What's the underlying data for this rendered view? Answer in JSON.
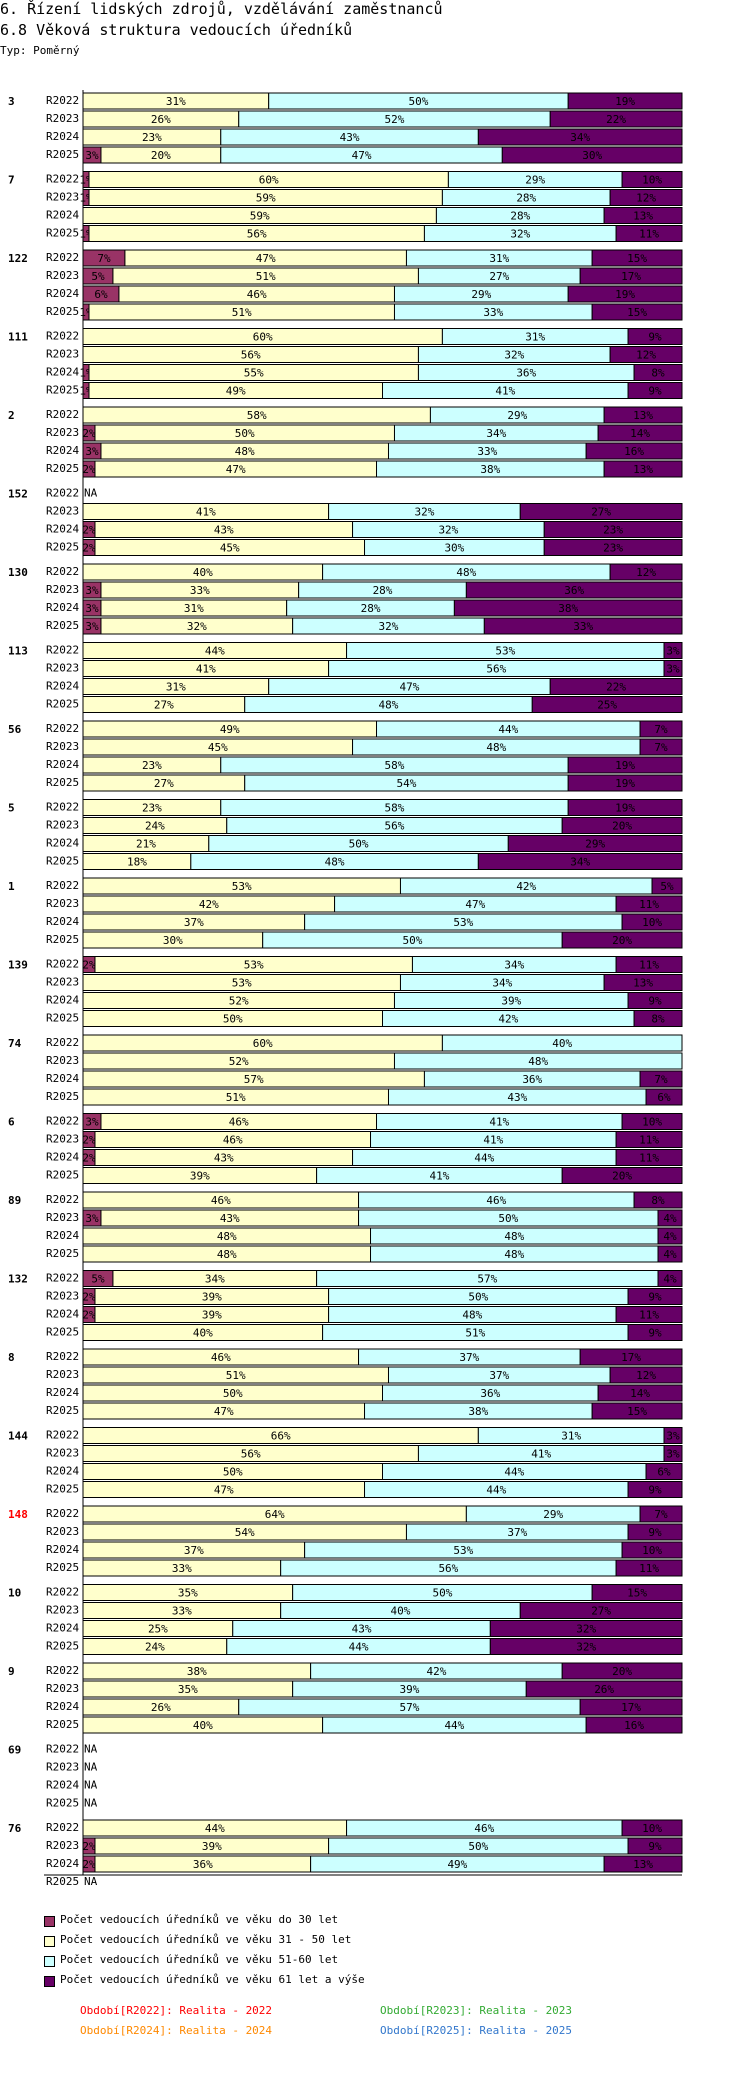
{
  "header": {
    "title": "6. Řízení lidských zdrojů, vzdělávání zaměstnanců",
    "subtitle": "6.8 Věková struktura vedoucích úředníků",
    "type_label": "Typ: Poměrný"
  },
  "colors": {
    "do30": "#993366",
    "31_50": "#ffffcc",
    "51_60": "#ccffff",
    "61plus": "#660066",
    "highlight_group": "#ff0000",
    "period_r2022": "#ff0000",
    "period_r2023": "#33aa33",
    "period_r2024": "#ff8800",
    "period_r2025": "#3377cc"
  },
  "legend": [
    {
      "label": "Počet vedoucích úředníků ve věku do 30 let",
      "color": "#993366"
    },
    {
      "label": "Počet vedoucích úředníků ve věku 31 - 50 let",
      "color": "#ffffcc"
    },
    {
      "label": "Počet vedoucích úředníků ve věku 51-60 let",
      "color": "#ccffff"
    },
    {
      "label": "Počet vedoucích úředníků ve věku 61 let a výše",
      "color": "#660066"
    }
  ],
  "periods": [
    {
      "label": "Období[R2022]: Realita - 2022",
      "color": "#ff0000"
    },
    {
      "label": "Období[R2023]: Realita - 2023",
      "color": "#33aa33"
    },
    {
      "label": "Období[R2024]: Realita - 2024",
      "color": "#ff8800"
    },
    {
      "label": "Období[R2025]: Realita - 2025",
      "color": "#3377cc"
    }
  ],
  "chart_data": {
    "type": "bar",
    "orientation": "horizontal",
    "stacked": "percent",
    "na_label": "NA",
    "series": [
      "Počet vedoucích úředníků ve věku do 30 let",
      "Počet vedoucích úředníků ve věku 31 - 50 let",
      "Počet vedoucích úředníků ve věku 51-60 let",
      "Počet vedoucích úředníků ve věku 61 let a výše"
    ],
    "groups": [
      {
        "id": "3",
        "highlight": false,
        "rows": [
          {
            "period": "R2022",
            "values": [
              0,
              31,
              50,
              19
            ]
          },
          {
            "period": "R2023",
            "values": [
              0,
              26,
              52,
              22
            ]
          },
          {
            "period": "R2024",
            "values": [
              0,
              23,
              43,
              34
            ]
          },
          {
            "period": "R2025",
            "values": [
              3,
              20,
              47,
              30
            ]
          }
        ]
      },
      {
        "id": "7",
        "highlight": false,
        "rows": [
          {
            "period": "R2022",
            "values": [
              1,
              60,
              29,
              10
            ]
          },
          {
            "period": "R2023",
            "values": [
              1,
              59,
              28,
              12
            ]
          },
          {
            "period": "R2024",
            "values": [
              0,
              59,
              28,
              13
            ]
          },
          {
            "period": "R2025",
            "values": [
              1,
              56,
              32,
              11
            ]
          }
        ]
      },
      {
        "id": "122",
        "highlight": false,
        "rows": [
          {
            "period": "R2022",
            "values": [
              7,
              47,
              31,
              15
            ]
          },
          {
            "period": "R2023",
            "values": [
              5,
              51,
              27,
              17
            ]
          },
          {
            "period": "R2024",
            "values": [
              6,
              46,
              29,
              19
            ]
          },
          {
            "period": "R2025",
            "values": [
              1,
              51,
              33,
              15
            ]
          }
        ]
      },
      {
        "id": "111",
        "highlight": false,
        "rows": [
          {
            "period": "R2022",
            "values": [
              0,
              60,
              31,
              9
            ]
          },
          {
            "period": "R2023",
            "values": [
              0,
              56,
              32,
              12
            ]
          },
          {
            "period": "R2024",
            "values": [
              1,
              55,
              36,
              8
            ]
          },
          {
            "period": "R2025",
            "values": [
              1,
              49,
              41,
              9
            ]
          }
        ]
      },
      {
        "id": "2",
        "highlight": false,
        "rows": [
          {
            "period": "R2022",
            "values": [
              0,
              58,
              29,
              13
            ]
          },
          {
            "period": "R2023",
            "values": [
              2,
              50,
              34,
              14
            ]
          },
          {
            "period": "R2024",
            "values": [
              3,
              48,
              33,
              16
            ]
          },
          {
            "period": "R2025",
            "values": [
              2,
              47,
              38,
              13
            ]
          }
        ]
      },
      {
        "id": "152",
        "highlight": false,
        "rows": [
          {
            "period": "R2022",
            "values": null
          },
          {
            "period": "R2023",
            "values": [
              0,
              41,
              32,
              27
            ]
          },
          {
            "period": "R2024",
            "values": [
              2,
              43,
              32,
              23
            ]
          },
          {
            "period": "R2025",
            "values": [
              2,
              45,
              30,
              23
            ]
          }
        ]
      },
      {
        "id": "130",
        "highlight": false,
        "rows": [
          {
            "period": "R2022",
            "values": [
              0,
              40,
              48,
              12
            ]
          },
          {
            "period": "R2023",
            "values": [
              3,
              33,
              28,
              36
            ]
          },
          {
            "period": "R2024",
            "values": [
              3,
              31,
              28,
              38
            ]
          },
          {
            "period": "R2025",
            "values": [
              3,
              32,
              32,
              33
            ]
          }
        ]
      },
      {
        "id": "113",
        "highlight": false,
        "rows": [
          {
            "period": "R2022",
            "values": [
              0,
              44,
              53,
              3
            ]
          },
          {
            "period": "R2023",
            "values": [
              0,
              41,
              56,
              3
            ]
          },
          {
            "period": "R2024",
            "values": [
              0,
              31,
              47,
              22
            ]
          },
          {
            "period": "R2025",
            "values": [
              0,
              27,
              48,
              25
            ]
          }
        ]
      },
      {
        "id": "56",
        "highlight": false,
        "rows": [
          {
            "period": "R2022",
            "values": [
              0,
              49,
              44,
              7
            ]
          },
          {
            "period": "R2023",
            "values": [
              0,
              45,
              48,
              7
            ]
          },
          {
            "period": "R2024",
            "values": [
              0,
              23,
              58,
              19
            ]
          },
          {
            "period": "R2025",
            "values": [
              0,
              27,
              54,
              19
            ]
          }
        ]
      },
      {
        "id": "5",
        "highlight": false,
        "rows": [
          {
            "period": "R2022",
            "values": [
              0,
              23,
              58,
              19
            ]
          },
          {
            "period": "R2023",
            "values": [
              0,
              24,
              56,
              20
            ]
          },
          {
            "period": "R2024",
            "values": [
              0,
              21,
              50,
              29
            ]
          },
          {
            "period": "R2025",
            "values": [
              0,
              18,
              48,
              34
            ]
          }
        ]
      },
      {
        "id": "1",
        "highlight": false,
        "rows": [
          {
            "period": "R2022",
            "values": [
              0,
              53,
              42,
              5
            ]
          },
          {
            "period": "R2023",
            "values": [
              0,
              42,
              47,
              11
            ]
          },
          {
            "period": "R2024",
            "values": [
              0,
              37,
              53,
              10
            ]
          },
          {
            "period": "R2025",
            "values": [
              0,
              30,
              50,
              20
            ]
          }
        ]
      },
      {
        "id": "139",
        "highlight": false,
        "rows": [
          {
            "period": "R2022",
            "values": [
              2,
              53,
              34,
              11
            ]
          },
          {
            "period": "R2023",
            "values": [
              0,
              53,
              34,
              13
            ]
          },
          {
            "period": "R2024",
            "values": [
              0,
              52,
              39,
              9
            ]
          },
          {
            "period": "R2025",
            "values": [
              0,
              50,
              42,
              8
            ]
          }
        ]
      },
      {
        "id": "74",
        "highlight": false,
        "rows": [
          {
            "period": "R2022",
            "values": [
              0,
              60,
              40,
              0
            ]
          },
          {
            "period": "R2023",
            "values": [
              0,
              52,
              48,
              0
            ]
          },
          {
            "period": "R2024",
            "values": [
              0,
              57,
              36,
              7
            ]
          },
          {
            "period": "R2025",
            "values": [
              0,
              51,
              43,
              6
            ]
          }
        ]
      },
      {
        "id": "6",
        "highlight": false,
        "rows": [
          {
            "period": "R2022",
            "values": [
              3,
              46,
              41,
              10
            ]
          },
          {
            "period": "R2023",
            "values": [
              2,
              46,
              41,
              11
            ]
          },
          {
            "period": "R2024",
            "values": [
              2,
              43,
              44,
              11
            ]
          },
          {
            "period": "R2025",
            "values": [
              0,
              39,
              41,
              20
            ]
          }
        ]
      },
      {
        "id": "89",
        "highlight": false,
        "rows": [
          {
            "period": "R2022",
            "values": [
              0,
              46,
              46,
              8
            ]
          },
          {
            "period": "R2023",
            "values": [
              3,
              43,
              50,
              4
            ]
          },
          {
            "period": "R2024",
            "values": [
              0,
              48,
              48,
              4
            ]
          },
          {
            "period": "R2025",
            "values": [
              0,
              48,
              48,
              4
            ]
          }
        ]
      },
      {
        "id": "132",
        "highlight": false,
        "rows": [
          {
            "period": "R2022",
            "values": [
              5,
              34,
              57,
              4
            ]
          },
          {
            "period": "R2023",
            "values": [
              2,
              39,
              50,
              9
            ]
          },
          {
            "period": "R2024",
            "values": [
              2,
              39,
              48,
              11
            ]
          },
          {
            "period": "R2025",
            "values": [
              0,
              40,
              51,
              9
            ]
          }
        ]
      },
      {
        "id": "8",
        "highlight": false,
        "rows": [
          {
            "period": "R2022",
            "values": [
              0,
              46,
              37,
              17
            ]
          },
          {
            "period": "R2023",
            "values": [
              0,
              51,
              37,
              12
            ]
          },
          {
            "period": "R2024",
            "values": [
              0,
              50,
              36,
              14
            ]
          },
          {
            "period": "R2025",
            "values": [
              0,
              47,
              38,
              15
            ]
          }
        ]
      },
      {
        "id": "144",
        "highlight": false,
        "rows": [
          {
            "period": "R2022",
            "values": [
              0,
              66,
              31,
              3
            ]
          },
          {
            "period": "R2023",
            "values": [
              0,
              56,
              41,
              3
            ]
          },
          {
            "period": "R2024",
            "values": [
              0,
              50,
              44,
              6
            ]
          },
          {
            "period": "R2025",
            "values": [
              0,
              47,
              44,
              9
            ]
          }
        ]
      },
      {
        "id": "148",
        "highlight": true,
        "rows": [
          {
            "period": "R2022",
            "values": [
              0,
              64,
              29,
              7
            ]
          },
          {
            "period": "R2023",
            "values": [
              0,
              54,
              37,
              9
            ]
          },
          {
            "period": "R2024",
            "values": [
              0,
              37,
              53,
              10
            ]
          },
          {
            "period": "R2025",
            "values": [
              0,
              33,
              56,
              11
            ]
          }
        ]
      },
      {
        "id": "10",
        "highlight": false,
        "rows": [
          {
            "period": "R2022",
            "values": [
              0,
              35,
              50,
              15
            ]
          },
          {
            "period": "R2023",
            "values": [
              0,
              33,
              40,
              27
            ]
          },
          {
            "period": "R2024",
            "values": [
              0,
              25,
              43,
              32
            ]
          },
          {
            "period": "R2025",
            "values": [
              0,
              24,
              44,
              32
            ]
          }
        ]
      },
      {
        "id": "9",
        "highlight": false,
        "rows": [
          {
            "period": "R2022",
            "values": [
              0,
              38,
              42,
              20
            ]
          },
          {
            "period": "R2023",
            "values": [
              0,
              35,
              39,
              26
            ]
          },
          {
            "period": "R2024",
            "values": [
              0,
              26,
              57,
              17
            ]
          },
          {
            "period": "R2025",
            "values": [
              0,
              40,
              44,
              16
            ]
          }
        ]
      },
      {
        "id": "69",
        "highlight": false,
        "rows": [
          {
            "period": "R2022",
            "values": null
          },
          {
            "period": "R2023",
            "values": null
          },
          {
            "period": "R2024",
            "values": null
          },
          {
            "period": "R2025",
            "values": null
          }
        ]
      },
      {
        "id": "76",
        "highlight": false,
        "rows": [
          {
            "period": "R2022",
            "values": [
              0,
              44,
              46,
              10
            ]
          },
          {
            "period": "R2023",
            "values": [
              2,
              39,
              50,
              9
            ]
          },
          {
            "period": "R2024",
            "values": [
              2,
              36,
              49,
              13
            ]
          },
          {
            "period": "R2025",
            "values": null
          }
        ]
      }
    ]
  }
}
